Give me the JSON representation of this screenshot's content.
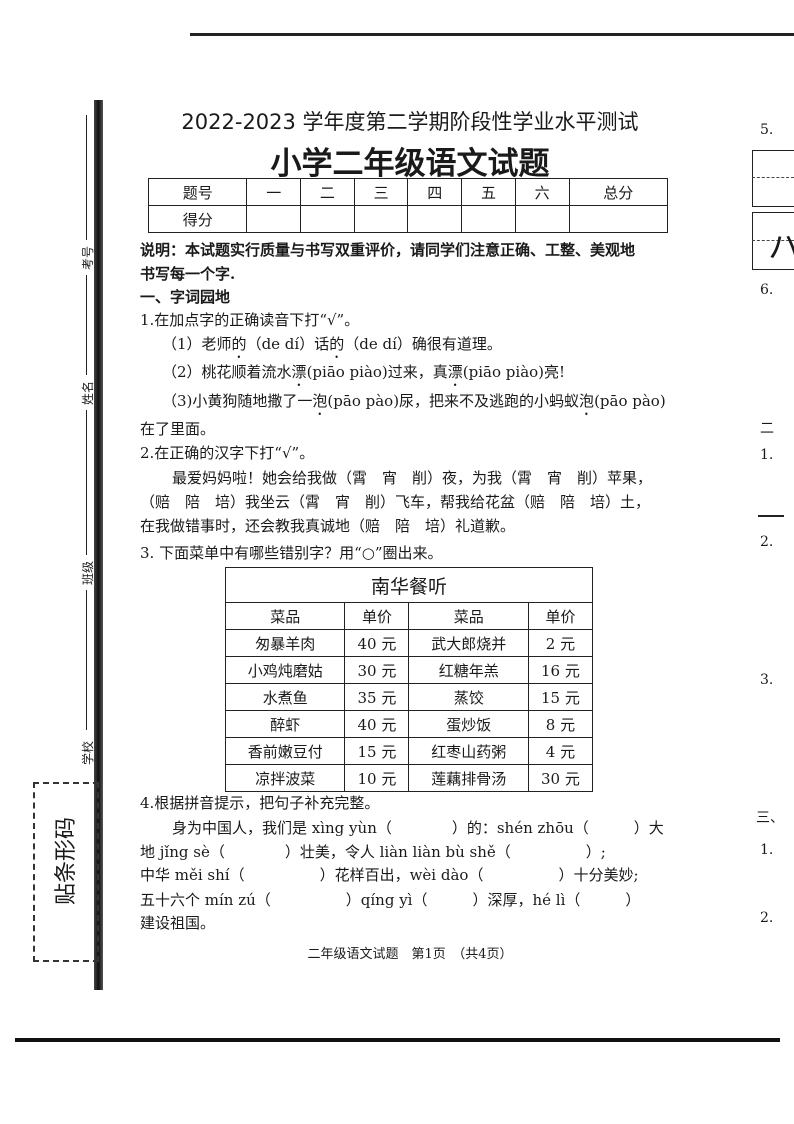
{
  "header": {
    "title_line1": "2022-2023 学年度第二学期阶段性学业水平测试",
    "title_line2": "小学二年级语文试题"
  },
  "score_table": {
    "row1": [
      "题号",
      "一",
      "二",
      "三",
      "四",
      "五",
      "六",
      "总分"
    ],
    "row2_label": "得分"
  },
  "instructions": {
    "line1": "说明：本试题实行质量与书写双重评价，请同学们注意正确、工整、美观地",
    "line2": "书写每一个字."
  },
  "section1": {
    "heading": "一、字词园地",
    "q1": {
      "prompt": "1.在加点字的正确读音下打“√”。",
      "item1": [
        "（1）老师",
        "的",
        "（de dí）话",
        "的",
        "（de dí）确很有道理。"
      ],
      "item2": [
        "（2）桃花顺着流水",
        "漂",
        "(piāo piào)过来，真",
        "漂",
        "(piāo piào)亮!"
      ],
      "item3": [
        "（3)小黄狗随地撒了一",
        "泡",
        "(pāo pào)尿，把来不及逃跑的小蚂蚁",
        "泡",
        "(pāo pào)"
      ],
      "item3_cont": "在了里面。"
    },
    "q2": {
      "prompt": "2.在正确的汉字下打“√”。",
      "line1": "最爱妈妈啦！她会给我做（霄　宵　削）夜，为我（霄　宵　削）苹果，",
      "line2": "（赔　陪　培）我坐云（霄　宵　削）飞车，帮我给花盆（赔　陪　培）土，",
      "line3": "在我做错事时，还会教我真诚地（赔　陪　培）礼道歉。"
    },
    "q3": {
      "prompt": "3. 下面菜单中有哪些错别字？用“○”圈出来。",
      "menu_title": "南华餐听",
      "headers": [
        "菜品",
        "单价",
        "菜品",
        "单价"
      ],
      "rows": [
        [
          "匆暴羊肉",
          "40 元",
          "武大郎烧并",
          "2 元"
        ],
        [
          "小鸡炖磨姑",
          "30 元",
          "红糖年羔",
          "16 元"
        ],
        [
          "水煮鱼",
          "35 元",
          "蒸饺",
          "15 元"
        ],
        [
          "醉虾",
          "40 元",
          "蛋炒饭",
          "8 元"
        ],
        [
          "香前嫩豆付",
          "15 元",
          "红枣山药粥",
          "4 元"
        ],
        [
          "凉拌波菜",
          "10 元",
          "莲藕排骨汤",
          "30 元"
        ]
      ]
    },
    "q4": {
      "prompt": "4.根据拼音提示，把句子补充完整。",
      "line1": "身为中国人，我们是 xìng yùn（　　　　）的：shén zhōu（　　　）大",
      "line2": "地 jǐng sè（　　　　）壮美，令人 liàn liàn bù shě（　　　　　）;",
      "line3": "中华 měi shí（　　　　　）花样百出，wèi dào（　　　　　）十分美妙;",
      "line4": "五十六个 mín zú（　　　　　）qíng yì（　　　）深厚，hé lì（　　　）",
      "line5": "建设祖国。"
    }
  },
  "footer": "二年级语文试题　第1页　（共4页）",
  "sidebar": {
    "labels": [
      "考号",
      "姓名",
      "班级",
      "学校"
    ],
    "barcode": "贴条形码"
  },
  "right_column": {
    "items": [
      "5.",
      "6.",
      "二",
      "1.",
      "2.",
      "3.",
      "三、",
      "1.",
      "2."
    ],
    "box_char": "ハ"
  }
}
